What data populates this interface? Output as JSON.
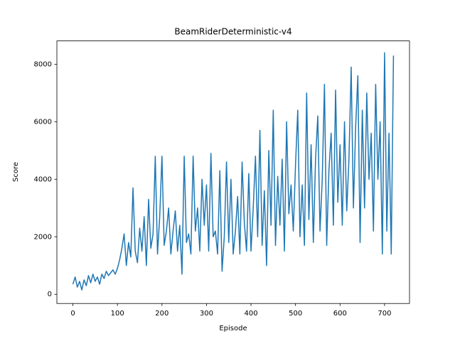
{
  "chart_data": {
    "type": "line",
    "title": "BeamRiderDeterministic-v4",
    "x_label": "Episode",
    "y_label": "Score",
    "color": "#1f77b4",
    "x": [
      0,
      5,
      10,
      15,
      20,
      25,
      30,
      35,
      40,
      45,
      50,
      55,
      60,
      65,
      70,
      75,
      80,
      85,
      90,
      95,
      100,
      105,
      110,
      115,
      120,
      125,
      130,
      135,
      140,
      145,
      150,
      155,
      160,
      165,
      170,
      175,
      180,
      185,
      190,
      195,
      200,
      205,
      210,
      215,
      220,
      225,
      230,
      235,
      240,
      245,
      250,
      255,
      260,
      265,
      270,
      275,
      280,
      285,
      290,
      295,
      300,
      305,
      310,
      315,
      320,
      325,
      330,
      335,
      340,
      345,
      350,
      355,
      360,
      365,
      370,
      375,
      380,
      385,
      390,
      395,
      400,
      405,
      410,
      415,
      420,
      425,
      430,
      435,
      440,
      445,
      450,
      455,
      460,
      465,
      470,
      475,
      480,
      485,
      490,
      495,
      500,
      505,
      510,
      515,
      520,
      525,
      530,
      535,
      540,
      545,
      550,
      555,
      560,
      565,
      570,
      575,
      580,
      585,
      590,
      595,
      600,
      605,
      610,
      615,
      620,
      625,
      630,
      635,
      640,
      645,
      650,
      655,
      660,
      665,
      670,
      675,
      680,
      685,
      690,
      695,
      700,
      705,
      710,
      715,
      720
    ],
    "values": [
      350,
      600,
      250,
      450,
      150,
      500,
      300,
      650,
      400,
      700,
      450,
      600,
      350,
      700,
      550,
      800,
      650,
      750,
      850,
      700,
      900,
      1200,
      1600,
      2100,
      1000,
      1800,
      1300,
      3700,
      1500,
      1100,
      2300,
      1500,
      2700,
      1000,
      3300,
      1600,
      2100,
      4800,
      1400,
      2700,
      4800,
      1700,
      2200,
      3000,
      1400,
      2200,
      2900,
      1500,
      2400,
      700,
      4800,
      1800,
      2100,
      1400,
      4800,
      2200,
      3000,
      1500,
      4000,
      2400,
      3800,
      1500,
      4900,
      2000,
      2200,
      1400,
      4300,
      800,
      2000,
      4600,
      1800,
      4000,
      1400,
      2200,
      3400,
      1400,
      4600,
      2500,
      1500,
      4200,
      1500,
      3000,
      4800,
      2000,
      5700,
      1700,
      3600,
      1000,
      5000,
      2400,
      6400,
      1700,
      4100,
      2400,
      4700,
      1500,
      6000,
      2800,
      3800,
      2200,
      4500,
      6400,
      2000,
      3800,
      1700,
      7000,
      2600,
      5200,
      1800,
      4700,
      6200,
      2200,
      4000,
      7300,
      1700,
      4300,
      5600,
      2400,
      7100,
      3200,
      5200,
      2400,
      6000,
      2900,
      4700,
      7900,
      3000,
      5800,
      7600,
      1800,
      6400,
      3000,
      7000,
      4000,
      5600,
      2200,
      7300,
      4000,
      6000,
      1400,
      8400,
      2200,
      5600,
      1400,
      8300
    ],
    "xlim": [
      -36,
      756
    ],
    "ylim": [
      -320,
      8810
    ],
    "xticks": [
      0,
      100,
      200,
      300,
      400,
      500,
      600,
      700
    ],
    "yticks": [
      0,
      2000,
      4000,
      6000,
      8000
    ],
    "grid": false
  }
}
